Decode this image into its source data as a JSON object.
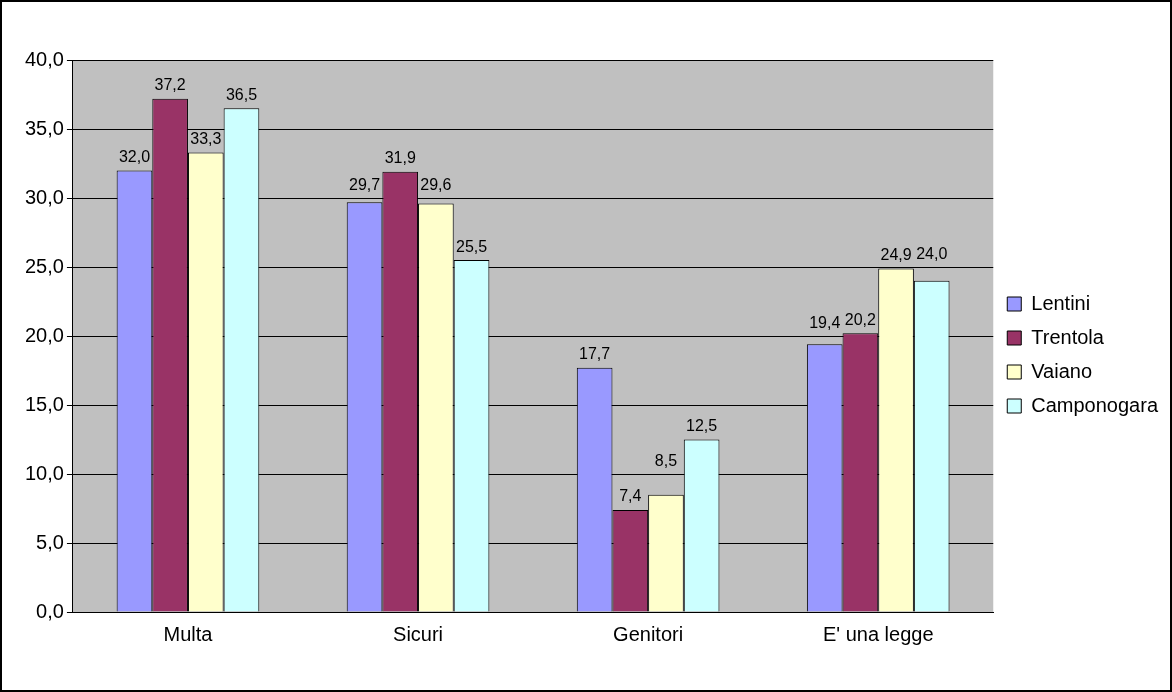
{
  "chart_data": {
    "type": "bar",
    "categories": [
      "Multa",
      "Sicuri",
      "Genitori",
      "E' una legge"
    ],
    "series": [
      {
        "name": "Lentini",
        "color": "#9999ff",
        "values": [
          32.0,
          29.7,
          17.7,
          19.4
        ],
        "value_labels": [
          "32,0",
          "29,7",
          "17,7",
          "19,4"
        ]
      },
      {
        "name": "Trentola",
        "color": "#993366",
        "values": [
          37.2,
          31.9,
          7.4,
          20.2
        ],
        "value_labels": [
          "37,2",
          "31,9",
          "7,4",
          "20,2"
        ]
      },
      {
        "name": "Vaiano",
        "color": "#ffffcc",
        "values": [
          33.3,
          29.6,
          8.5,
          24.9
        ],
        "value_labels": [
          "33,3",
          "29,6",
          "8,5",
          "24,9"
        ]
      },
      {
        "name": "Camponogara",
        "color": "#ccffff",
        "values": [
          36.5,
          25.5,
          12.5,
          24.0
        ],
        "value_labels": [
          "36,5",
          "25,5",
          "12,5",
          "24,0"
        ]
      }
    ],
    "ylim": [
      0,
      40
    ],
    "yticks": [
      {
        "value": 0,
        "label": "0,0"
      },
      {
        "value": 5,
        "label": "5,0"
      },
      {
        "value": 10,
        "label": "10,0"
      },
      {
        "value": 15,
        "label": "15,0"
      },
      {
        "value": 20,
        "label": "20,0"
      },
      {
        "value": 25,
        "label": "25,0"
      },
      {
        "value": 30,
        "label": "30,0"
      },
      {
        "value": 35,
        "label": "35,0"
      },
      {
        "value": 40,
        "label": "40,0"
      }
    ],
    "grid": "y",
    "legend": "right"
  }
}
